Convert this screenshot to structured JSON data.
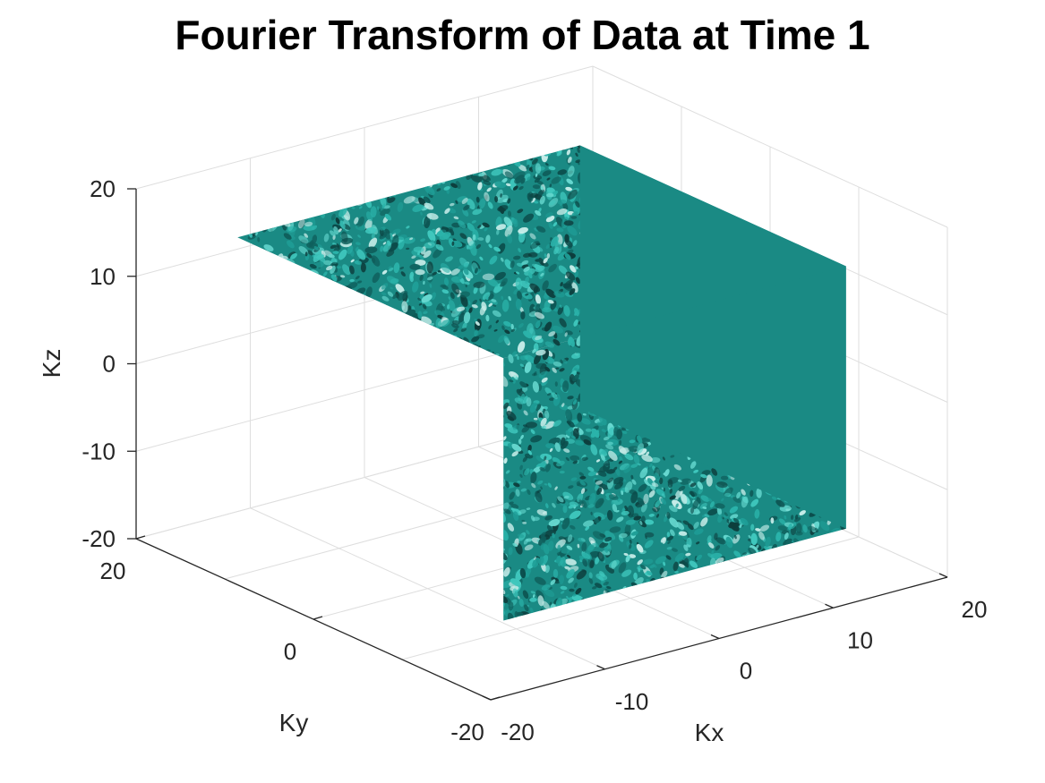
{
  "chart_data": {
    "type": "isosurface-3d",
    "title": "Fourier Transform of Data at Time 1",
    "xlabel": "Kx",
    "ylabel": "Ky",
    "zlabel": "Kz",
    "xlim": [
      -20,
      20
    ],
    "ylim": [
      -20,
      20
    ],
    "zlim": [
      -20,
      20
    ],
    "x_ticks": [
      "-20",
      "-10",
      "0",
      "10",
      "20"
    ],
    "y_ticks": [
      "-20",
      "0",
      "20"
    ],
    "z_ticks": [
      "-20",
      "-10",
      "0",
      "10",
      "20"
    ],
    "surface_extent": {
      "x": [
        -15,
        15
      ],
      "y": [
        -15,
        15
      ],
      "z": [
        -15,
        15
      ]
    },
    "surface_color": "#1a8a84",
    "grid": true
  }
}
